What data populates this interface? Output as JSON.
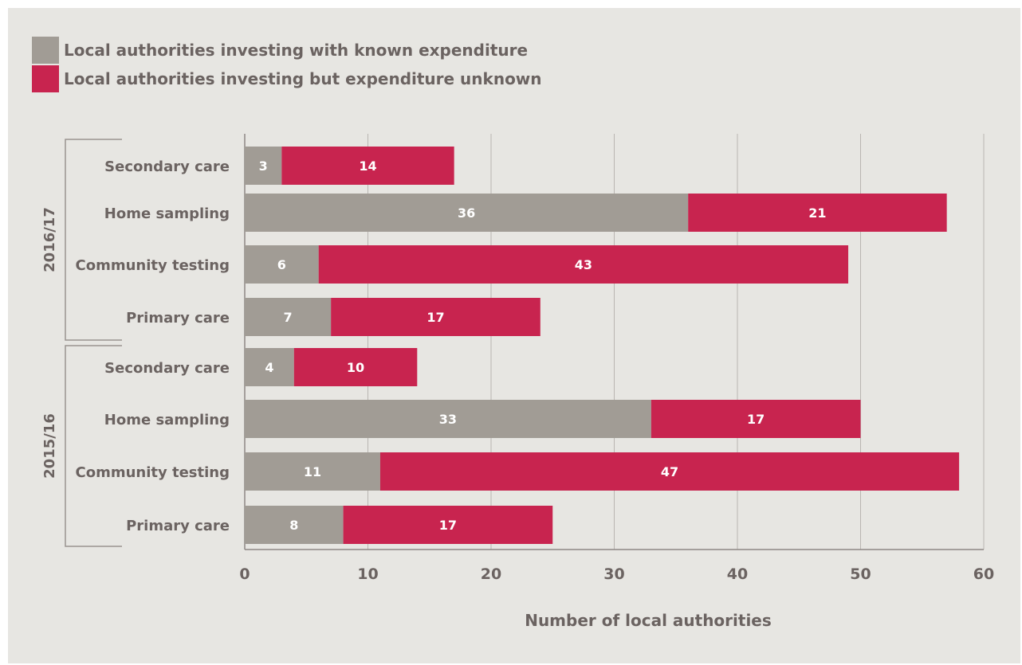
{
  "chart_data": {
    "type": "bar",
    "orientation": "horizontal",
    "stacked": true,
    "legend": {
      "placement": "top-left",
      "entries": [
        {
          "label": "Local authorities investing with known expenditure",
          "color": "#a19c95"
        },
        {
          "label": "Local authorities investing but expenditure unknown",
          "color": "#c8244f"
        }
      ]
    },
    "xlabel": "Number of local authorities",
    "xlim": [
      0,
      60
    ],
    "xticks": [
      "0",
      "10",
      "20",
      "30",
      "40",
      "50",
      "60"
    ],
    "grid": true,
    "groups": [
      {
        "name": "2016/17",
        "categories": [
          "Secondary care",
          "Home sampling",
          "Community testing",
          "Primary care"
        ],
        "series": [
          {
            "name": "Local authorities investing with known expenditure",
            "values": [
              3,
              36,
              6,
              7
            ]
          },
          {
            "name": "Local authorities investing but expenditure unknown",
            "values": [
              14,
              21,
              43,
              17
            ]
          }
        ]
      },
      {
        "name": "2015/16",
        "categories": [
          "Secondary care",
          "Home sampling",
          "Community testing",
          "Primary care"
        ],
        "series": [
          {
            "name": "Local authorities investing with known expenditure",
            "values": [
              4,
              33,
              11,
              8
            ]
          },
          {
            "name": "Local authorities investing but expenditure unknown",
            "values": [
              10,
              17,
              47,
              17
            ]
          }
        ]
      }
    ]
  }
}
